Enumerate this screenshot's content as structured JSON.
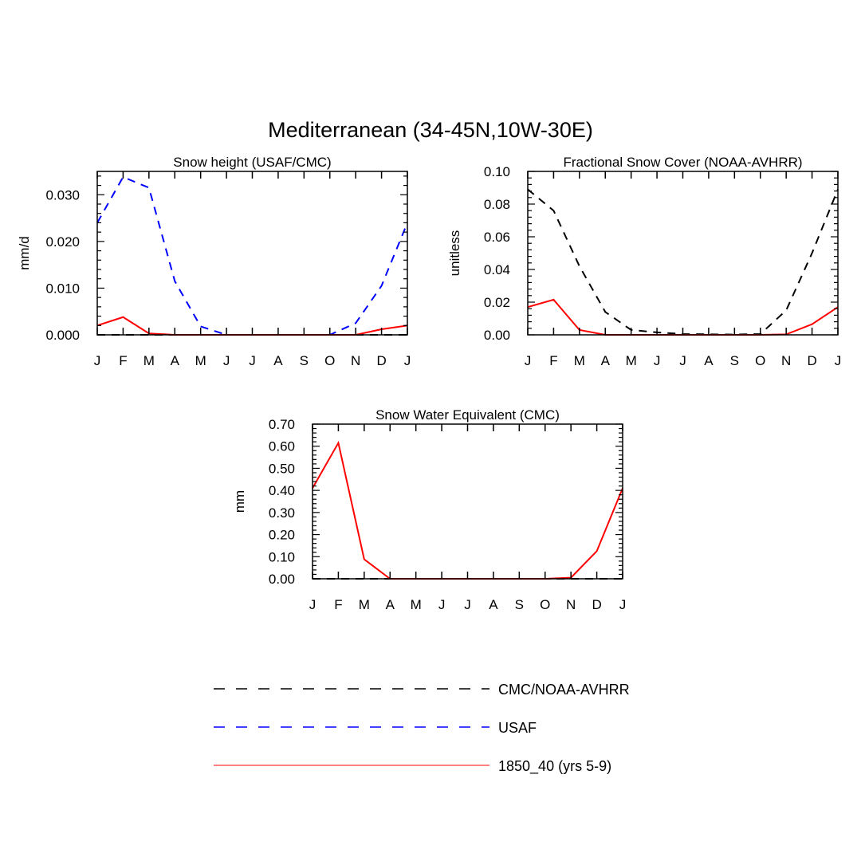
{
  "figure": {
    "title": "Mediterranean (34-45N,10W-30E)"
  },
  "legend": {
    "entries": [
      {
        "label": "CMC/NOAA-AVHRR",
        "color": "#000000",
        "style": "dashed"
      },
      {
        "label": "USAF",
        "color": "#0000ff",
        "style": "dashed"
      },
      {
        "label": "1850_40 (yrs 5-9)",
        "color": "#ff0000",
        "style": "solid"
      }
    ]
  },
  "chart_data": [
    {
      "type": "line",
      "title": "Snow height (USAF/CMC)",
      "xlabel": "",
      "ylabel": "mm/d",
      "categories": [
        "J",
        "F",
        "M",
        "A",
        "M",
        "J",
        "J",
        "A",
        "S",
        "O",
        "N",
        "D",
        "J"
      ],
      "ylim": [
        0,
        0.035
      ],
      "yticks": [
        0,
        0.01,
        0.02,
        0.03
      ],
      "ytick_labels": [
        "0.000",
        "0.010",
        "0.020",
        "0.030"
      ],
      "series": [
        {
          "name": "CMC/NOAA-AVHRR",
          "color": "#000000",
          "style": "dashed",
          "values": [
            0,
            0,
            0,
            0,
            0,
            0,
            0,
            0,
            0,
            0,
            0,
            0,
            0
          ]
        },
        {
          "name": "USAF",
          "color": "#0000ff",
          "style": "dashed",
          "values": [
            0.024,
            0.0338,
            0.0315,
            0.0115,
            0.0018,
            0,
            0,
            0,
            0,
            0,
            0.0025,
            0.0105,
            0.024
          ]
        },
        {
          "name": "1850_40 (yrs 5-9)",
          "color": "#ff0000",
          "style": "solid",
          "values": [
            0.002,
            0.0038,
            0.0003,
            0,
            0,
            0,
            0,
            0,
            0,
            0,
            0,
            0.0012,
            0.002
          ]
        }
      ]
    },
    {
      "type": "line",
      "title": "Fractional Snow Cover (NOAA-AVHRR)",
      "xlabel": "",
      "ylabel": "unitless",
      "categories": [
        "J",
        "F",
        "M",
        "A",
        "M",
        "J",
        "J",
        "A",
        "S",
        "O",
        "N",
        "D",
        "J"
      ],
      "ylim": [
        0,
        0.1
      ],
      "yticks": [
        0,
        0.02,
        0.04,
        0.06,
        0.08,
        0.1
      ],
      "ytick_labels": [
        "0.00",
        "0.02",
        "0.04",
        "0.06",
        "0.08",
        "0.10"
      ],
      "series": [
        {
          "name": "CMC/NOAA-AVHRR",
          "color": "#000000",
          "style": "dashed",
          "values": [
            0.089,
            0.076,
            0.042,
            0.014,
            0.003,
            0.0015,
            0.0005,
            0.0003,
            0.0002,
            0.0005,
            0.015,
            0.05,
            0.089
          ]
        },
        {
          "name": "1850_40 (yrs 5-9)",
          "color": "#ff0000",
          "style": "solid",
          "values": [
            0.017,
            0.0215,
            0.003,
            0,
            0,
            0,
            0,
            0,
            0,
            0,
            0.0003,
            0.0065,
            0.017
          ]
        }
      ]
    },
    {
      "type": "line",
      "title": "Snow Water Equivalent (CMC)",
      "xlabel": "",
      "ylabel": "mm",
      "categories": [
        "J",
        "F",
        "M",
        "A",
        "M",
        "J",
        "J",
        "A",
        "S",
        "O",
        "N",
        "D",
        "J"
      ],
      "ylim": [
        0,
        0.7
      ],
      "yticks": [
        0,
        0.1,
        0.2,
        0.3,
        0.4,
        0.5,
        0.6,
        0.7
      ],
      "ytick_labels": [
        "0.00",
        "0.10",
        "0.20",
        "0.30",
        "0.40",
        "0.50",
        "0.60",
        "0.70"
      ],
      "series": [
        {
          "name": "CMC/NOAA-AVHRR",
          "color": "#000000",
          "style": "dashed",
          "values": [
            0,
            0,
            0,
            0,
            0,
            0,
            0,
            0,
            0,
            0,
            0,
            0,
            0
          ]
        },
        {
          "name": "1850_40 (yrs 5-9)",
          "color": "#ff0000",
          "style": "solid",
          "values": [
            0.41,
            0.615,
            0.088,
            0,
            0,
            0,
            0,
            0,
            0,
            0,
            0.005,
            0.125,
            0.41
          ]
        }
      ]
    }
  ]
}
